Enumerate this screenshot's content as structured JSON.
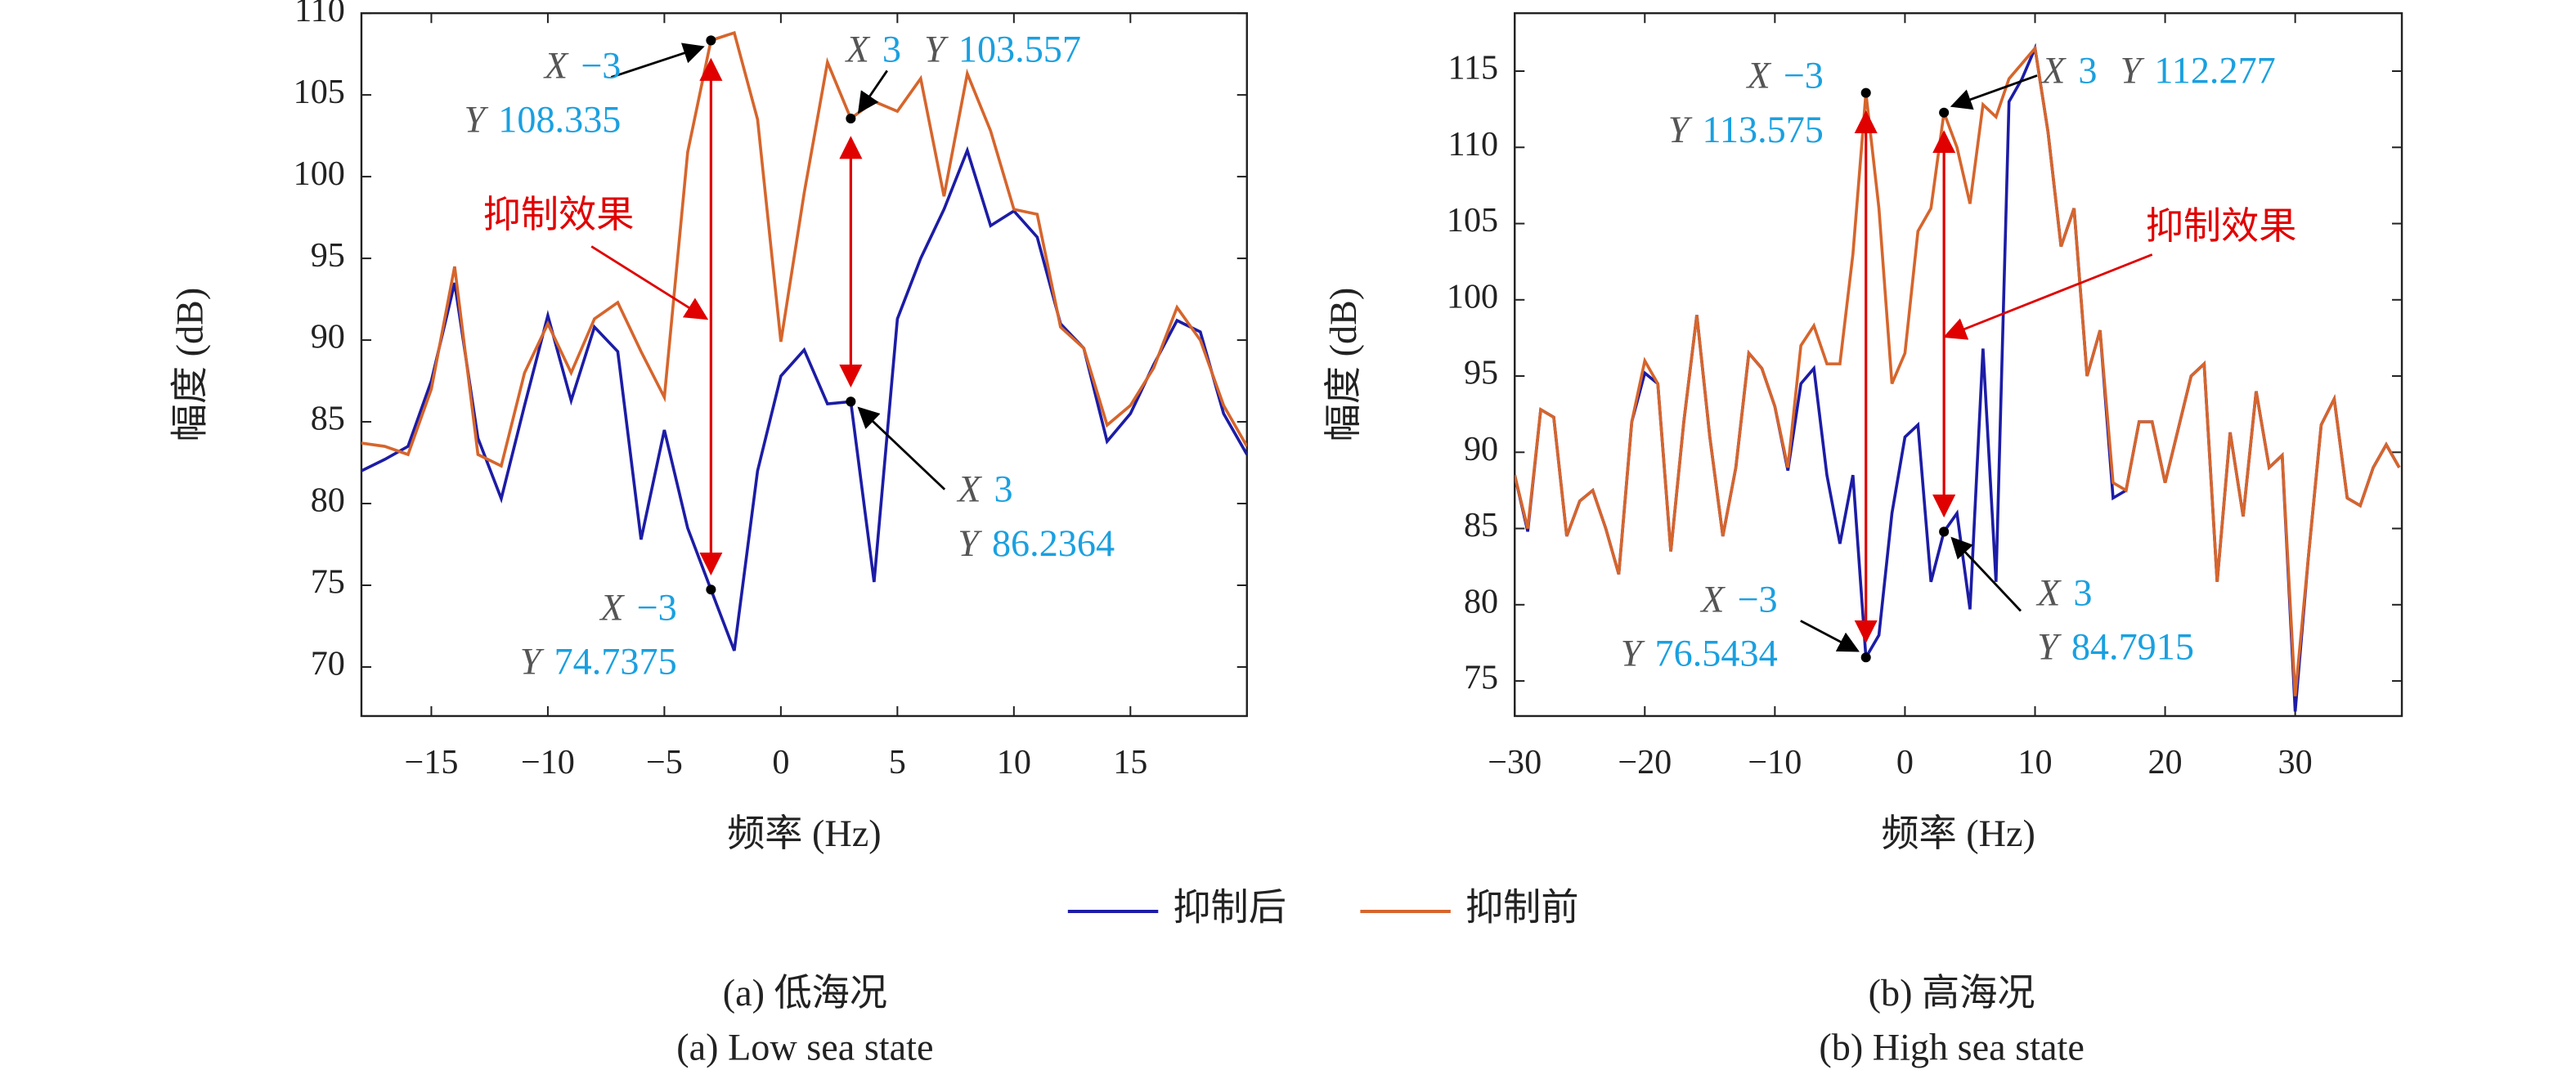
{
  "chart_data": [
    {
      "type": "line",
      "ylabel": "幅度 (dB)",
      "xlabel": "频率 (Hz)",
      "caption": "(a) 低海况",
      "caption_en": "(a) Low sea state",
      "xlim": [
        -18,
        20
      ],
      "ylim": [
        67,
        110
      ],
      "xticks": [
        {
          "value": -15,
          "label": "−15"
        },
        {
          "value": -10,
          "label": "−10"
        },
        {
          "value": -5,
          "label": "−5"
        },
        0,
        5,
        10,
        15
      ],
      "yticks": [
        70,
        75,
        80,
        85,
        90,
        95,
        100,
        105,
        110
      ],
      "x": [
        -18,
        -17,
        -16,
        -15,
        -14,
        -13,
        -12,
        -11,
        -10,
        -9,
        -8,
        -7,
        -6,
        -5,
        -4,
        -3,
        -2,
        -1,
        0,
        1,
        2,
        3,
        4,
        5,
        6,
        7,
        8,
        9,
        10,
        11,
        12,
        13,
        14,
        15,
        16,
        17,
        18,
        19,
        20
      ],
      "series": [
        {
          "name": "抑制后",
          "color": "#1c1ca6",
          "values": [
            82,
            82.7,
            83.5,
            87.5,
            93.5,
            84,
            80.3,
            86,
            91.5,
            86.3,
            90.8,
            89.3,
            77.8,
            84.5,
            78.5,
            74.7375,
            71,
            82,
            87.8,
            89.4,
            86.1,
            86.2364,
            75.2,
            91.3,
            95,
            98,
            101.6,
            97,
            97.9,
            96.3,
            91,
            89.5,
            83.8,
            85.5,
            88.5,
            91.2,
            90.5,
            85.5,
            83
          ]
        },
        {
          "name": "抑制前",
          "color": "#d6652c",
          "values": [
            83.7,
            83.5,
            83,
            87,
            94.5,
            83,
            82.3,
            88,
            91,
            88,
            91.3,
            92.3,
            89.3,
            86.5,
            101.5,
            108.335,
            108.8,
            103.5,
            89.9,
            99,
            107,
            103.557,
            104.6,
            104,
            106,
            98.8,
            106.3,
            102.8,
            98,
            97.7,
            90.8,
            89.5,
            84.8,
            86,
            88.3,
            92,
            90,
            86,
            83.5
          ]
        }
      ],
      "point_label_x": "X",
      "point_label_y": "Y",
      "effect_label": "抑制效果",
      "annotations": [
        {
          "x": -3,
          "y": 108.335,
          "x_label": "−3",
          "y_label": "108.335"
        },
        {
          "x": 3,
          "y": 103.557,
          "x_label": "3",
          "y_label": "103.557"
        },
        {
          "x": -3,
          "y": 74.7375,
          "x_label": "−3",
          "y_label": "74.7375"
        },
        {
          "x": 3,
          "y": 86.2364,
          "x_label": "3",
          "y_label": "86.2364"
        }
      ]
    },
    {
      "type": "line",
      "ylabel": "幅度 (dB)",
      "xlabel": "频率 (Hz)",
      "caption": "(b) 高海况",
      "caption_en": "(b) High sea state",
      "xlim": [
        -30,
        38.2
      ],
      "ylim": [
        72.7,
        118.8
      ],
      "xticks": [
        {
          "value": -30,
          "label": "−30"
        },
        {
          "value": -20,
          "label": "−20"
        },
        {
          "value": -10,
          "label": "−10"
        },
        0,
        10,
        20,
        30
      ],
      "yticks": [
        75,
        80,
        85,
        90,
        95,
        100,
        105,
        110,
        115
      ],
      "x": [
        -30,
        -29,
        -28,
        -27,
        -26,
        -25,
        -24,
        -23,
        -22,
        -21,
        -20,
        -19,
        -18,
        -17,
        -16,
        -15,
        -14,
        -13,
        -12,
        -11,
        -10,
        -9,
        -8,
        -7,
        -6,
        -5,
        -4,
        -3,
        -2,
        -1,
        0,
        1,
        2,
        3,
        4,
        5,
        6,
        7,
        8,
        9,
        10,
        11,
        12,
        13,
        14,
        15,
        16,
        17,
        18,
        19,
        20,
        21,
        22,
        23,
        24,
        25,
        26,
        27,
        28,
        29,
        30,
        31,
        32,
        33,
        34,
        35,
        36,
        37,
        38
      ],
      "series": [
        {
          "color": "#1c1ca6",
          "values": [
            88.5,
            84.8,
            92.8,
            92.3,
            84.5,
            86.8,
            87.5,
            85,
            82,
            92,
            95.2,
            94.5,
            83.5,
            92,
            99,
            91,
            84.5,
            89,
            96.5,
            95.5,
            93,
            88.8,
            94.5,
            95.5,
            88.5,
            84,
            88.5,
            76.5434,
            78,
            86,
            91,
            91.8,
            81.5,
            84.7915,
            86,
            79.7,
            96.8,
            81.5,
            113,
            114.5,
            116.5,
            111,
            103.5,
            106,
            95,
            98,
            87,
            87.5,
            92,
            92,
            88,
            91.5,
            95,
            95.8,
            81.5,
            91.3,
            85.8,
            94,
            89,
            89.8,
            73,
            83,
            91.8,
            93.5,
            87,
            86.5,
            89,
            90.5,
            89
          ]
        },
        {
          "color": "#d6652c",
          "values": [
            88.5,
            85,
            92.8,
            92.3,
            84.5,
            86.8,
            87.5,
            85,
            82,
            92,
            96,
            94.5,
            83.5,
            92,
            99,
            91,
            84.5,
            89,
            96.5,
            95.5,
            93,
            89,
            97,
            98.3,
            95.8,
            95.8,
            103,
            113.575,
            106,
            94.5,
            96.5,
            104.5,
            106,
            112.277,
            110,
            106.3,
            112.8,
            112,
            114.5,
            115.5,
            116.5,
            111,
            103.5,
            106,
            95,
            98,
            88,
            87.5,
            92,
            92,
            88,
            91.5,
            95,
            95.8,
            81.5,
            91.3,
            85.8,
            94,
            89,
            89.8,
            74,
            83,
            91.8,
            93.5,
            87,
            86.5,
            89,
            90.5,
            89
          ]
        }
      ],
      "point_label_x": "X",
      "point_label_y": "Y",
      "effect_label": "抑制效果",
      "annotations": [
        {
          "x": -3,
          "y": 113.575,
          "x_label": "−3",
          "y_label": "113.575"
        },
        {
          "x": 3,
          "y": 112.277,
          "x_label": "3",
          "y_label": "112.277"
        },
        {
          "x": -3,
          "y": 76.5434,
          "x_label": "−3",
          "y_label": "76.5434"
        },
        {
          "x": 3,
          "y": 84.7915,
          "x_label": "3",
          "y_label": "84.7915"
        }
      ]
    }
  ]
}
